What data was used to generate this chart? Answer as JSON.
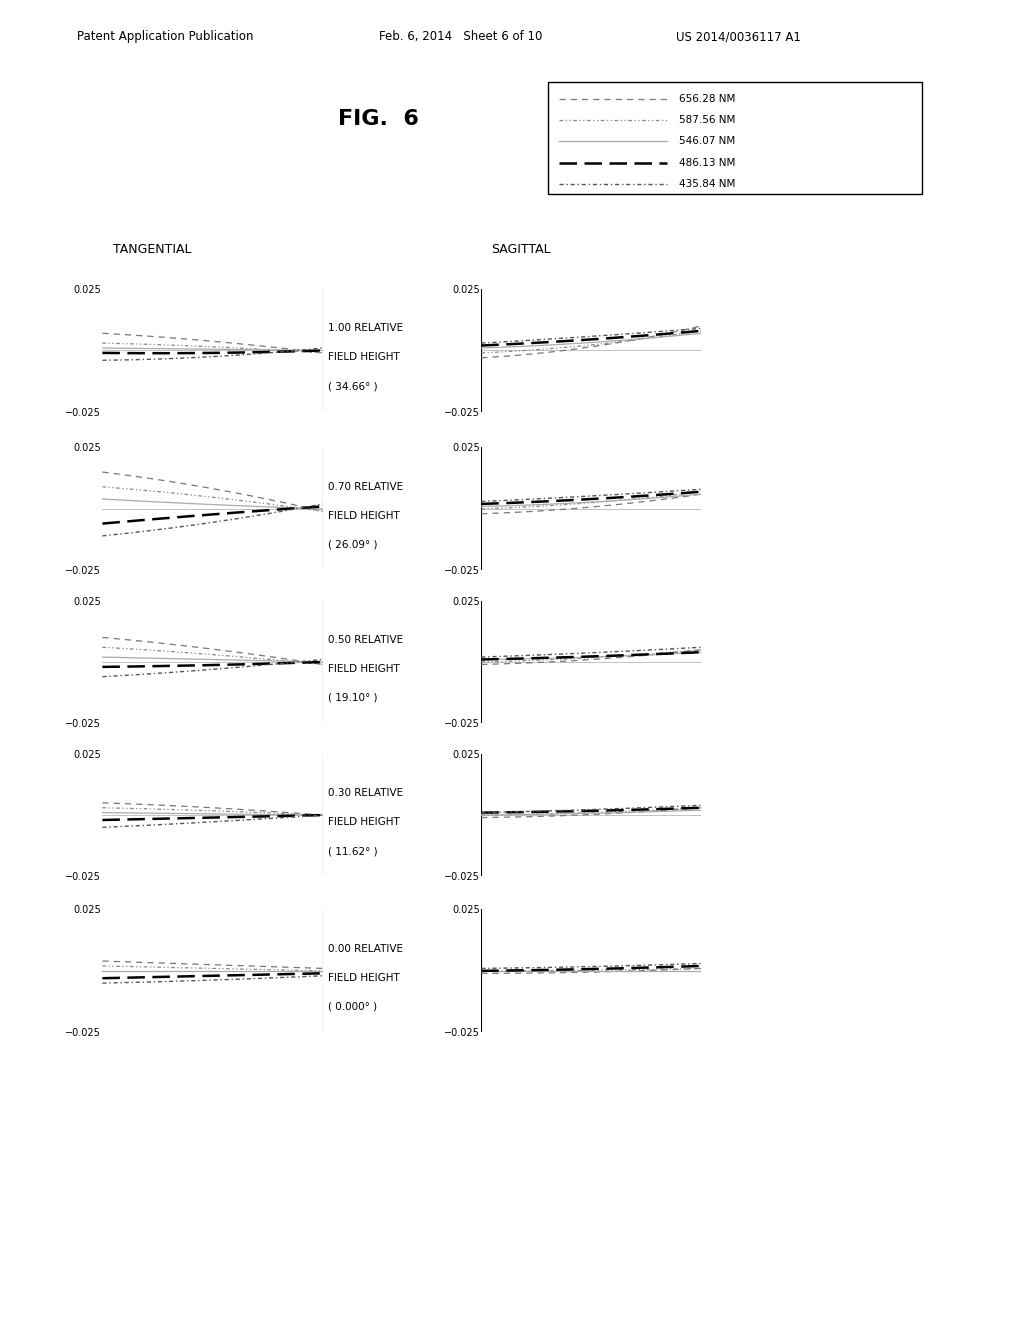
{
  "title": "FIG.  6",
  "header_left": "Patent Application Publication",
  "header_mid": "Feb. 6, 2014   Sheet 6 of 10",
  "header_right": "US 2014/0036117 A1",
  "field_heights": [
    {
      "line1": "1.00 RELATIVE",
      "line2": "FIELD HEIGHT",
      "line3": "( 34.66° )"
    },
    {
      "line1": "0.70 RELATIVE",
      "line2": "FIELD HEIGHT",
      "line3": "( 26.09° )"
    },
    {
      "line1": "0.50 RELATIVE",
      "line2": "FIELD HEIGHT",
      "line3": "( 19.10° )"
    },
    {
      "line1": "0.30 RELATIVE",
      "line2": "FIELD HEIGHT",
      "line3": "( 11.62° )"
    },
    {
      "line1": "0.00 RELATIVE",
      "line2": "FIELD HEIGHT",
      "line3": "( 0.000° )"
    }
  ],
  "legend_entries": [
    {
      "label": "656.28 NM",
      "color": "#777777",
      "linestyle": "dashed_fine",
      "lw": 0.9
    },
    {
      "label": "587.56 NM",
      "color": "#888888",
      "linestyle": "dashdotdot",
      "lw": 0.9
    },
    {
      "label": "546.07 NM",
      "color": "#aaaaaa",
      "linestyle": "solid",
      "lw": 0.9
    },
    {
      "label": "486.13 NM",
      "color": "#000000",
      "linestyle": "dashed_bold",
      "lw": 1.8
    },
    {
      "label": "435.84 NM",
      "color": "#555555",
      "linestyle": "dashdotdash",
      "lw": 1.0
    }
  ],
  "bg": "#ffffff"
}
